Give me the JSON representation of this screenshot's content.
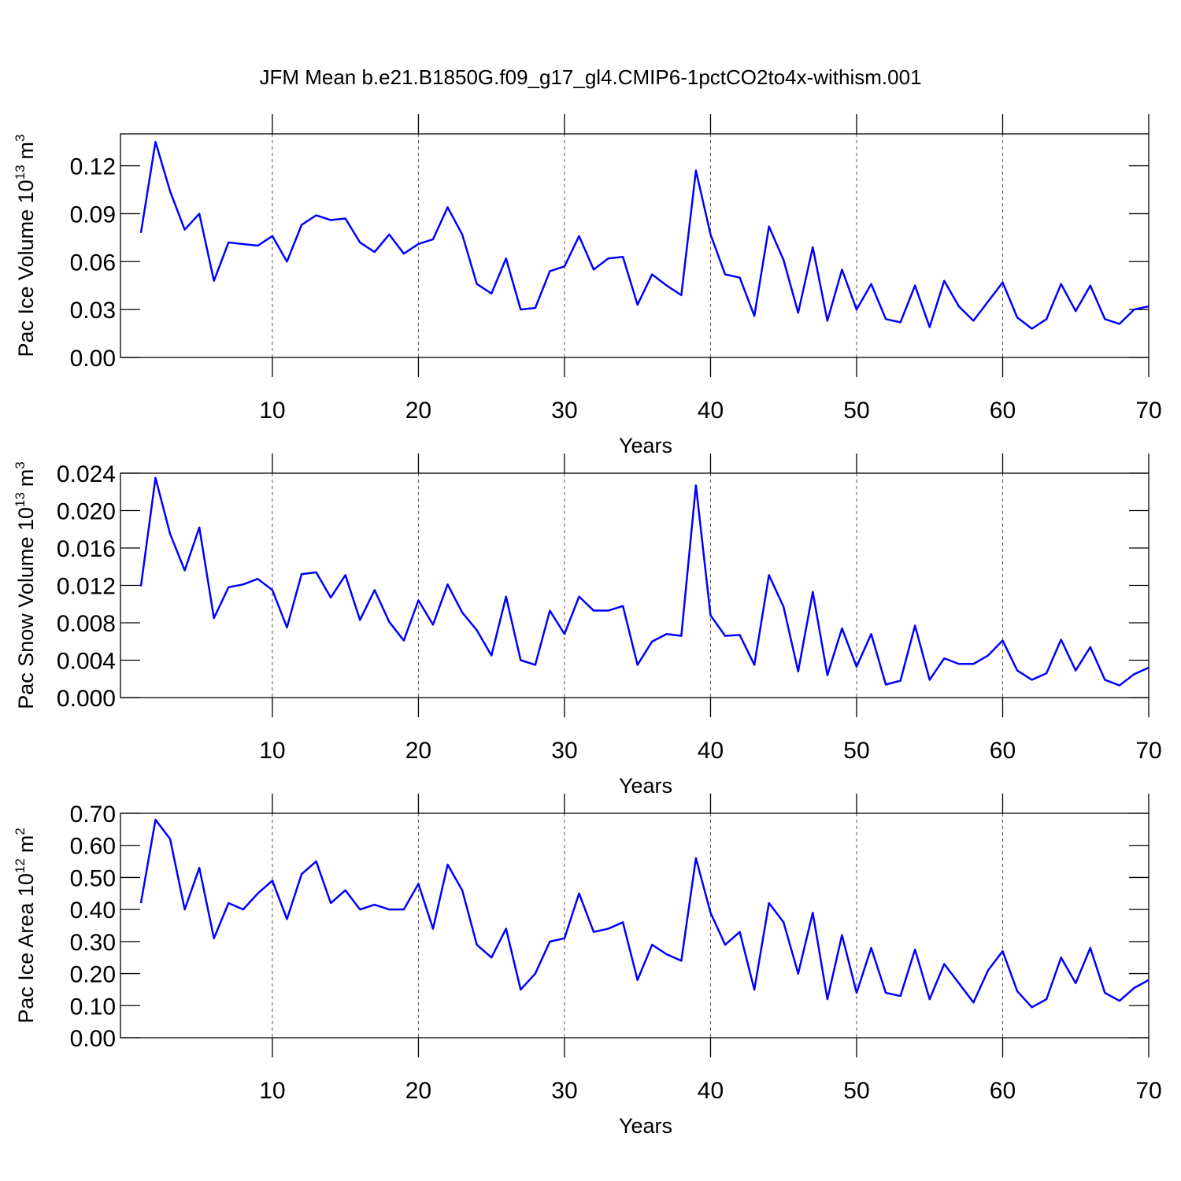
{
  "title": "JFM Mean b.e21.B1850G.f09_g17_gl4.CMIP6-1pctCO2to4x-withism.001",
  "chart_data": [
    {
      "type": "line",
      "ylabel": [
        "Pac Ice Volume 10",
        "13",
        "m",
        "3"
      ],
      "xlabel": "Years",
      "x": [
        1,
        2,
        3,
        4,
        5,
        6,
        7,
        8,
        9,
        10,
        11,
        12,
        13,
        14,
        15,
        16,
        17,
        18,
        19,
        20,
        21,
        22,
        23,
        24,
        25,
        26,
        27,
        28,
        29,
        30,
        31,
        32,
        33,
        34,
        35,
        36,
        37,
        38,
        39,
        40,
        41,
        42,
        43,
        44,
        45,
        46,
        47,
        48,
        49,
        50,
        51,
        52,
        53,
        54,
        55,
        56,
        57,
        58,
        59,
        60,
        61,
        62,
        63,
        64,
        65,
        66,
        67,
        68,
        69,
        70
      ],
      "series": [
        {
          "color": "#0000ff",
          "values": [
            0.078,
            0.135,
            0.104,
            0.08,
            0.09,
            0.048,
            0.072,
            0.071,
            0.07,
            0.076,
            0.06,
            0.083,
            0.089,
            0.086,
            0.087,
            0.072,
            0.066,
            0.077,
            0.065,
            0.071,
            0.074,
            0.094,
            0.077,
            0.046,
            0.04,
            0.062,
            0.03,
            0.031,
            0.054,
            0.057,
            0.076,
            0.055,
            0.062,
            0.063,
            0.033,
            0.052,
            0.045,
            0.039,
            0.117,
            0.077,
            0.052,
            0.05,
            0.026,
            0.082,
            0.061,
            0.028,
            0.069,
            0.023,
            0.055,
            0.03,
            0.046,
            0.024,
            0.022,
            0.045,
            0.019,
            0.048,
            0.032,
            0.023,
            0.035,
            0.047,
            0.025,
            0.018,
            0.024,
            0.046,
            0.029,
            0.045,
            0.024,
            0.021,
            0.03,
            0.032
          ]
        }
      ],
      "xlim": [
        -0.4,
        70
      ],
      "xticks": [
        10,
        20,
        30,
        40,
        50,
        60,
        70
      ],
      "xgrid": true,
      "ylim": [
        0,
        0.14
      ],
      "yticks": [
        {
          "value": 0,
          "label": "0.00"
        },
        0.03,
        0.06,
        0.09,
        0.12
      ]
    },
    {
      "type": "line",
      "ylabel": [
        "Pac Snow Volume 10",
        "13",
        "m",
        "3"
      ],
      "xlabel": "Years",
      "x": [
        1,
        2,
        3,
        4,
        5,
        6,
        7,
        8,
        9,
        10,
        11,
        12,
        13,
        14,
        15,
        16,
        17,
        18,
        19,
        20,
        21,
        22,
        23,
        24,
        25,
        26,
        27,
        28,
        29,
        30,
        31,
        32,
        33,
        34,
        35,
        36,
        37,
        38,
        39,
        40,
        41,
        42,
        43,
        44,
        45,
        46,
        47,
        48,
        49,
        50,
        51,
        52,
        53,
        54,
        55,
        56,
        57,
        58,
        59,
        60,
        61,
        62,
        63,
        64,
        65,
        66,
        67,
        68,
        69,
        70
      ],
      "series": [
        {
          "color": "#0000ff",
          "values": [
            0.0119,
            0.0235,
            0.0175,
            0.0136,
            0.0182,
            0.0085,
            0.0118,
            0.0121,
            0.0127,
            0.0115,
            0.0075,
            0.0132,
            0.0134,
            0.0107,
            0.0131,
            0.0083,
            0.0115,
            0.0081,
            0.0061,
            0.0104,
            0.0078,
            0.0121,
            0.0091,
            0.0072,
            0.0045,
            0.0108,
            0.004,
            0.0035,
            0.0093,
            0.0068,
            0.0108,
            0.0093,
            0.0093,
            0.0098,
            0.0035,
            0.006,
            0.0068,
            0.0066,
            0.0227,
            0.0088,
            0.0066,
            0.0067,
            0.0035,
            0.0131,
            0.0097,
            0.0028,
            0.0113,
            0.0024,
            0.0074,
            0.0033,
            0.0068,
            0.0014,
            0.0018,
            0.0077,
            0.0019,
            0.0042,
            0.0036,
            0.0036,
            0.0045,
            0.0061,
            0.0029,
            0.0019,
            0.0026,
            0.0062,
            0.0029,
            0.0054,
            0.0019,
            0.0013,
            0.0025,
            0.0032
          ]
        }
      ],
      "xlim": [
        -0.4,
        70
      ],
      "xticks": [
        10,
        20,
        30,
        40,
        50,
        60,
        70
      ],
      "xgrid": true,
      "ylim": [
        0,
        0.024
      ],
      "yticks": [
        {
          "value": 0,
          "label": "0.000"
        },
        0.004,
        0.008,
        0.012,
        0.016,
        {
          "value": 0.02,
          "label": "0.020"
        },
        0.024
      ]
    },
    {
      "type": "line",
      "ylabel": [
        "Pac Ice Area 10",
        "12",
        "m",
        "2"
      ],
      "xlabel": "Years",
      "x": [
        1,
        2,
        3,
        4,
        5,
        6,
        7,
        8,
        9,
        10,
        11,
        12,
        13,
        14,
        15,
        16,
        17,
        18,
        19,
        20,
        21,
        22,
        23,
        24,
        25,
        26,
        27,
        28,
        29,
        30,
        31,
        32,
        33,
        34,
        35,
        36,
        37,
        38,
        39,
        40,
        41,
        42,
        43,
        44,
        45,
        46,
        47,
        48,
        49,
        50,
        51,
        52,
        53,
        54,
        55,
        56,
        57,
        58,
        59,
        60,
        61,
        62,
        63,
        64,
        65,
        66,
        67,
        68,
        69,
        70
      ],
      "series": [
        {
          "color": "#0000ff",
          "values": [
            0.42,
            0.68,
            0.62,
            0.4,
            0.53,
            0.31,
            0.42,
            0.4,
            0.45,
            0.49,
            0.37,
            0.51,
            0.55,
            0.42,
            0.46,
            0.4,
            0.415,
            0.4,
            0.4,
            0.48,
            0.34,
            0.54,
            0.46,
            0.29,
            0.25,
            0.34,
            0.15,
            0.2,
            0.3,
            0.31,
            0.45,
            0.33,
            0.34,
            0.36,
            0.18,
            0.29,
            0.26,
            0.24,
            0.56,
            0.39,
            0.29,
            0.33,
            0.15,
            0.42,
            0.36,
            0.2,
            0.39,
            0.12,
            0.32,
            0.14,
            0.28,
            0.14,
            0.13,
            0.275,
            0.12,
            0.23,
            0.17,
            0.11,
            0.21,
            0.27,
            0.145,
            0.095,
            0.12,
            0.25,
            0.17,
            0.28,
            0.14,
            0.115,
            0.155,
            0.18
          ]
        }
      ],
      "xlim": [
        -0.4,
        70
      ],
      "xticks": [
        10,
        20,
        30,
        40,
        50,
        60,
        70
      ],
      "xgrid": true,
      "ylim": [
        0,
        0.7
      ],
      "yticks": [
        {
          "value": 0,
          "label": "0.00"
        },
        {
          "value": 0.1,
          "label": "0.10"
        },
        {
          "value": 0.2,
          "label": "0.20"
        },
        {
          "value": 0.3,
          "label": "0.30"
        },
        {
          "value": 0.4,
          "label": "0.40"
        },
        {
          "value": 0.5,
          "label": "0.50"
        },
        {
          "value": 0.6,
          "label": "0.60"
        },
        {
          "value": 0.7,
          "label": "0.70"
        }
      ]
    }
  ]
}
